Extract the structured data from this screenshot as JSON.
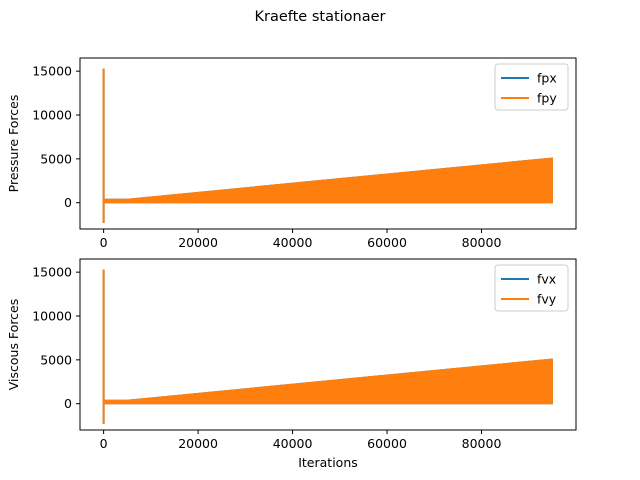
{
  "figure": {
    "suptitle": "Kraefte stationaer"
  },
  "colors": {
    "series1": "#1f77b4",
    "series2": "#ff7f0e",
    "axes": "#000000",
    "legend_border": "#cccccc"
  },
  "chart_data": [
    {
      "type": "line",
      "ylabel": "Pressure Forces",
      "xlabel": "",
      "xlim": [
        -5000,
        100000
      ],
      "ylim": [
        -3000,
        16500
      ],
      "xticks": [
        0,
        20000,
        40000,
        60000,
        80000
      ],
      "xtick_labels": [
        "0",
        "20000",
        "40000",
        "60000",
        "80000"
      ],
      "yticks": [
        0,
        5000,
        10000,
        15000
      ],
      "ytick_labels": [
        "0",
        "5000",
        "10000",
        "15000"
      ],
      "grid": false,
      "legend": {
        "placement": "top-right",
        "entries": [
          "fpx",
          "fpy"
        ]
      },
      "series": [
        {
          "name": "fpx",
          "description": "overlapped by fpy; oscillates with same envelope",
          "spike": {
            "x": 0,
            "min": -2300,
            "max": 15300
          },
          "envelope": {
            "x": [
              0,
              5000,
              95000
            ],
            "min": [
              0,
              0,
              0
            ],
            "max": [
              400,
              400,
              5100
            ]
          }
        },
        {
          "name": "fpy",
          "spike": {
            "x": 0,
            "min": -2300,
            "max": 15300
          },
          "envelope": {
            "x": [
              0,
              5000,
              95000
            ],
            "min": [
              0,
              0,
              0
            ],
            "max": [
              400,
              400,
              5100
            ]
          }
        }
      ]
    },
    {
      "type": "line",
      "ylabel": "Viscous Forces",
      "xlabel": "Iterations",
      "xlim": [
        -5000,
        100000
      ],
      "ylim": [
        -3000,
        16500
      ],
      "xticks": [
        0,
        20000,
        40000,
        60000,
        80000
      ],
      "xtick_labels": [
        "0",
        "20000",
        "40000",
        "60000",
        "80000"
      ],
      "yticks": [
        0,
        5000,
        10000,
        15000
      ],
      "ytick_labels": [
        "0",
        "5000",
        "10000",
        "15000"
      ],
      "grid": false,
      "legend": {
        "placement": "top-right",
        "entries": [
          "fvx",
          "fvy"
        ]
      },
      "series": [
        {
          "name": "fvx",
          "spike": {
            "x": 0,
            "min": -2300,
            "max": 15300
          },
          "envelope": {
            "x": [
              0,
              5000,
              95000
            ],
            "min": [
              0,
              0,
              0
            ],
            "max": [
              400,
              400,
              5100
            ]
          }
        },
        {
          "name": "fvy",
          "spike": {
            "x": 0,
            "min": -2300,
            "max": 15300
          },
          "envelope": {
            "x": [
              0,
              5000,
              95000
            ],
            "min": [
              0,
              0,
              0
            ],
            "max": [
              400,
              400,
              5100
            ]
          }
        }
      ]
    }
  ]
}
